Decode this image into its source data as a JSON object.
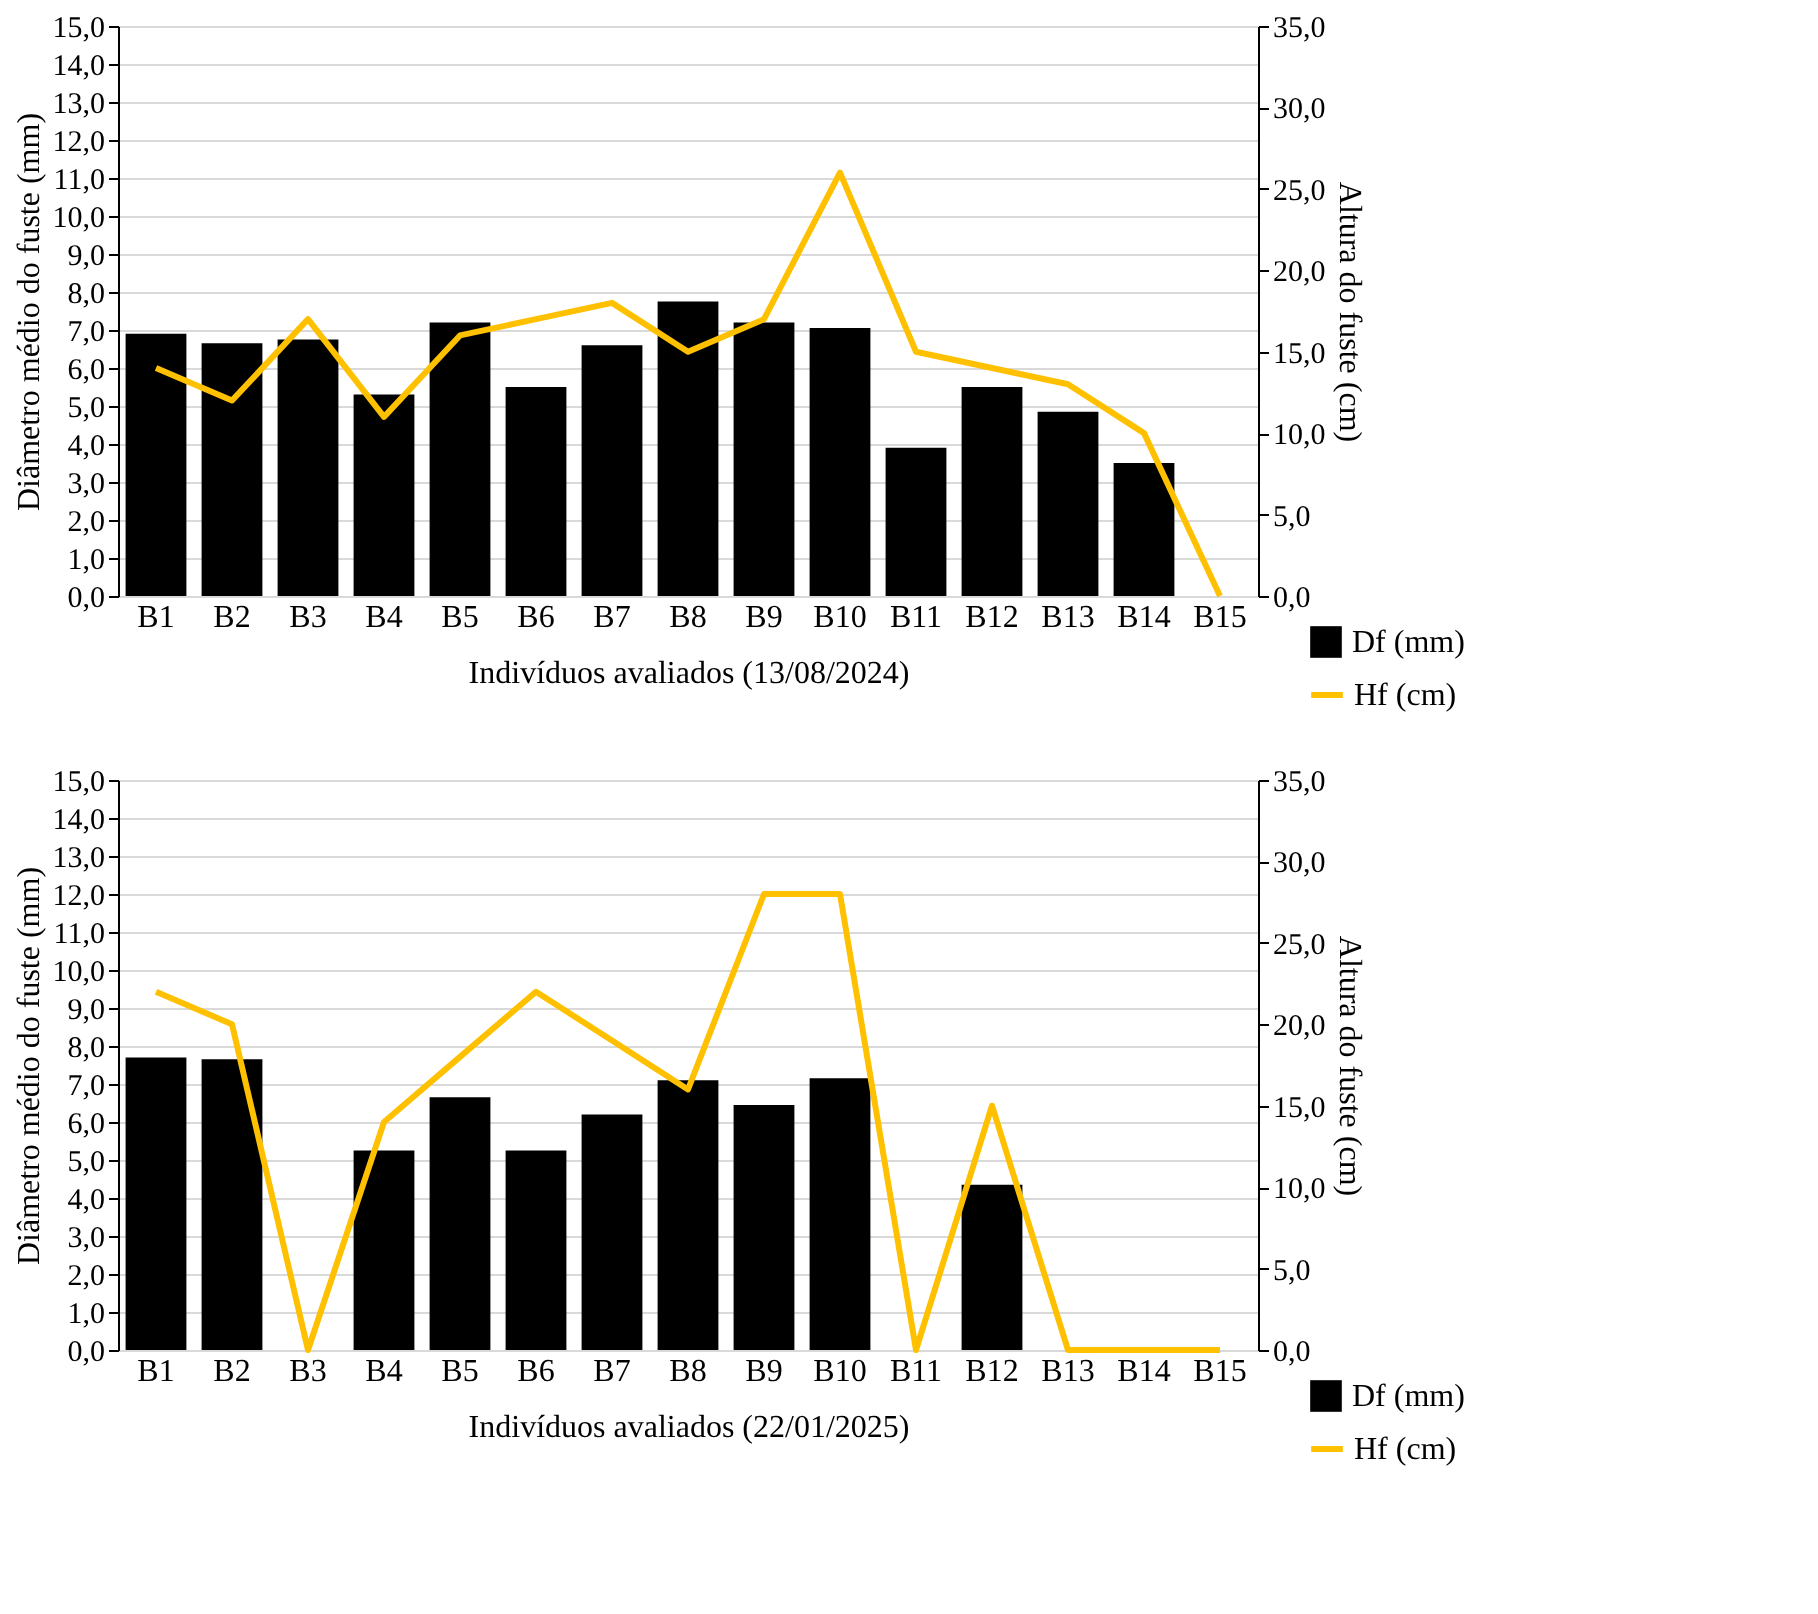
{
  "chart_data": [
    {
      "type": "bar",
      "xlabel": "Indivíduos avaliados  (13/08/2024)",
      "ylabel": "Diâmetro médio do fuste (mm)",
      "y2label": "Altura do fuste (cm)",
      "categories": [
        "B1",
        "B2",
        "B3",
        "B4",
        "B5",
        "B6",
        "B7",
        "B8",
        "B9",
        "B10",
        "B11",
        "B12",
        "B13",
        "B14",
        "B15"
      ],
      "series": [
        {
          "name": "Df (mm)",
          "color": "#000000",
          "values": [
            6.9,
            6.65,
            6.75,
            5.3,
            7.2,
            5.5,
            6.6,
            7.75,
            7.2,
            7.05,
            3.9,
            5.5,
            4.85,
            3.5,
            0
          ]
        },
        {
          "name": "Hf (cm)",
          "type": "line",
          "axis": "y2",
          "color": "#ffc000",
          "values": [
            14,
            12,
            17,
            11,
            16,
            17,
            18,
            15,
            17,
            26,
            15,
            14,
            13,
            10,
            0
          ]
        }
      ],
      "ylim": [
        0,
        15
      ],
      "yticks": [
        {
          "value": 0,
          "label": "0,0"
        },
        {
          "value": 1,
          "label": "1,0"
        },
        {
          "value": 2,
          "label": "2,0"
        },
        {
          "value": 3,
          "label": "3,0"
        },
        {
          "value": 4,
          "label": "4,0"
        },
        {
          "value": 5,
          "label": "5,0"
        },
        {
          "value": 6,
          "label": "6,0"
        },
        {
          "value": 7,
          "label": "7,0"
        },
        {
          "value": 8,
          "label": "8,0"
        },
        {
          "value": 9,
          "label": "9,0"
        },
        {
          "value": 10,
          "label": "10,0"
        },
        {
          "value": 11,
          "label": "11,0"
        },
        {
          "value": 12,
          "label": "12,0"
        },
        {
          "value": 13,
          "label": "13,0"
        },
        {
          "value": 14,
          "label": "14,0"
        },
        {
          "value": 15,
          "label": "15,0"
        }
      ],
      "y2lim": [
        0,
        35
      ],
      "y2ticks": [
        {
          "value": 0,
          "label": "0,0"
        },
        {
          "value": 5,
          "label": "5,0"
        },
        {
          "value": 10,
          "label": "10,0"
        },
        {
          "value": 15,
          "label": "15,0"
        },
        {
          "value": 20,
          "label": "20,0"
        },
        {
          "value": 25,
          "label": "25,0"
        },
        {
          "value": 30,
          "label": "30,0"
        },
        {
          "value": 35,
          "label": "35,0"
        }
      ],
      "grid": "y",
      "legend": "bottom right"
    },
    {
      "type": "bar",
      "xlabel": "Indivíduos avaliados  (22/01/2025)",
      "ylabel": "Diâmetro médio do fuste (mm)",
      "y2label": "Altura do fuste (cm)",
      "categories": [
        "B1",
        "B2",
        "B3",
        "B4",
        "B5",
        "B6",
        "B7",
        "B8",
        "B9",
        "B10",
        "B11",
        "B12",
        "B13",
        "B14",
        "B15"
      ],
      "series": [
        {
          "name": "Df (mm)",
          "color": "#000000",
          "values": [
            7.7,
            7.65,
            0,
            5.25,
            6.65,
            5.25,
            6.2,
            7.1,
            6.45,
            7.15,
            0,
            4.35,
            0,
            0,
            0
          ]
        },
        {
          "name": "Hf (cm)",
          "type": "line",
          "axis": "y2",
          "color": "#ffc000",
          "values": [
            22,
            20,
            0,
            14,
            18,
            22,
            19,
            16,
            28,
            28,
            0,
            15,
            0,
            0,
            0
          ]
        }
      ],
      "ylim": [
        0,
        15
      ],
      "yticks": [
        {
          "value": 0,
          "label": "0,0"
        },
        {
          "value": 1,
          "label": "1,0"
        },
        {
          "value": 2,
          "label": "2,0"
        },
        {
          "value": 3,
          "label": "3,0"
        },
        {
          "value": 4,
          "label": "4,0"
        },
        {
          "value": 5,
          "label": "5,0"
        },
        {
          "value": 6,
          "label": "6,0"
        },
        {
          "value": 7,
          "label": "7,0"
        },
        {
          "value": 8,
          "label": "8,0"
        },
        {
          "value": 9,
          "label": "9,0"
        },
        {
          "value": 10,
          "label": "10,0"
        },
        {
          "value": 11,
          "label": "11,0"
        },
        {
          "value": 12,
          "label": "12,0"
        },
        {
          "value": 13,
          "label": "13,0"
        },
        {
          "value": 14,
          "label": "14,0"
        },
        {
          "value": 15,
          "label": "15,0"
        }
      ],
      "y2lim": [
        0,
        35
      ],
      "y2ticks": [
        {
          "value": 0,
          "label": "0,0"
        },
        {
          "value": 5,
          "label": "5,0"
        },
        {
          "value": 10,
          "label": "10,0"
        },
        {
          "value": 15,
          "label": "15,0"
        },
        {
          "value": 20,
          "label": "20,0"
        },
        {
          "value": 25,
          "label": "25,0"
        },
        {
          "value": 30,
          "label": "30,0"
        },
        {
          "value": 35,
          "label": "35,0"
        }
      ],
      "grid": "y",
      "legend": "bottom right"
    }
  ]
}
